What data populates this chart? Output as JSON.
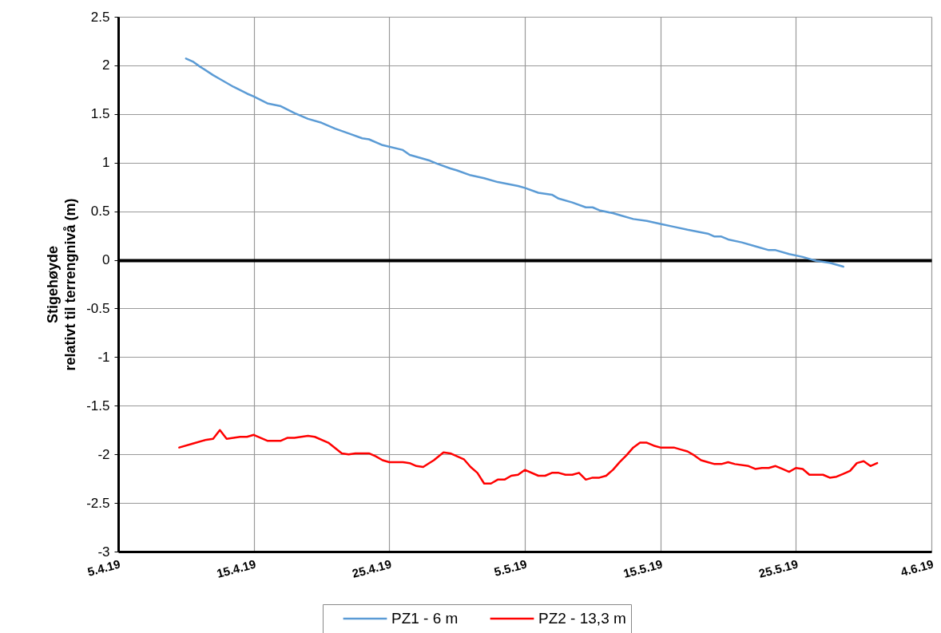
{
  "chart_data": {
    "type": "line",
    "ylabel": "Stigehøyde\nrelativt til terrengnivå (m)",
    "xlim": [
      "--04-05",
      "--06-04"
    ],
    "xticks": [
      {
        "value": "--04-05",
        "label": "5.4.19"
      },
      {
        "value": "--04-15",
        "label": "15.4.19"
      },
      {
        "value": "--04-25",
        "label": "25.4.19"
      },
      {
        "value": "--05-05",
        "label": "5.5.19"
      },
      {
        "value": "--05-15",
        "label": "15.5.19"
      },
      {
        "value": "--05-25",
        "label": "25.5.19"
      },
      {
        "value": "--06-04",
        "label": "4.6.19"
      }
    ],
    "ylim": [
      -3,
      2.5
    ],
    "yticks": [
      -3,
      -2.5,
      -2,
      -1.5,
      -1,
      -0.5,
      0,
      0.5,
      1,
      1.5,
      2,
      2.5
    ],
    "grid": true,
    "legend": "bottom",
    "series": [
      {
        "name": "PZ1 - 6 m",
        "color": "#5b9bd5",
        "x": [
          "--04-10",
          "--04-10T12:00",
          "--04-11",
          "--04-12",
          "--04-12T12:00",
          "--04-13T12:00",
          "--04-14T12:00",
          "--04-15",
          "--04-16",
          "--04-17",
          "--04-18",
          "--04-19",
          "--04-20",
          "--04-21",
          "--04-22",
          "--04-23",
          "--04-23T12:00",
          "--04-24T12:00",
          "--04-26",
          "--04-26T12:00",
          "--04-28",
          "--04-28T12:00",
          "--04-29T12:00",
          "--04-30",
          "--05-01",
          "--05-02",
          "--05-03",
          "--05-04T12:00",
          "--05-05",
          "--05-06",
          "--05-07",
          "--05-07T12:00",
          "--05-08T12:00",
          "--05-09T12:00",
          "--05-10",
          "--05-10T12:00",
          "--05-11T12:00",
          "--05-12",
          "--05-13",
          "--05-14",
          "--05-15",
          "--05-16",
          "--05-17",
          "--05-18T12:00",
          "--05-19",
          "--05-19T12:00",
          "--05-20",
          "--05-21",
          "--05-22",
          "--05-23",
          "--05-23T12:00",
          "--05-24T12:00",
          "--05-25T12:00",
          "--05-26T12:00",
          "--05-27T12:00",
          "--05-28T12:00"
        ],
        "values": [
          2.07,
          2.04,
          1.99,
          1.9,
          1.86,
          1.78,
          1.71,
          1.68,
          1.61,
          1.58,
          1.51,
          1.45,
          1.41,
          1.35,
          1.3,
          1.25,
          1.24,
          1.18,
          1.13,
          1.08,
          1.02,
          0.99,
          0.94,
          0.92,
          0.87,
          0.84,
          0.8,
          0.76,
          0.74,
          0.69,
          0.67,
          0.63,
          0.59,
          0.54,
          0.54,
          0.51,
          0.48,
          0.46,
          0.42,
          0.4,
          0.37,
          0.34,
          0.31,
          0.27,
          0.24,
          0.24,
          0.21,
          0.18,
          0.14,
          0.1,
          0.1,
          0.06,
          0.03,
          -0.01,
          -0.03,
          -0.07
        ]
      },
      {
        "name": "PZ2 - 13,3 m",
        "color": "#ff0000",
        "x": [
          "--04-09T12:00",
          "--04-10T12:00",
          "--04-11T12:00",
          "--04-12",
          "--04-12T12:00",
          "--04-13",
          "--04-14",
          "--04-14T12:00",
          "--04-15",
          "--04-16",
          "--04-17",
          "--04-17T12:00",
          "--04-18",
          "--04-19",
          "--04-19T12:00",
          "--04-20T12:00",
          "--04-21T12:00",
          "--04-22",
          "--04-22T12:00",
          "--04-23T12:00",
          "--04-24",
          "--04-24T12:00",
          "--04-25",
          "--04-26",
          "--04-26T12:00",
          "--04-27",
          "--04-27T12:00",
          "--04-28T07:00",
          "--04-29",
          "--04-29T12:00",
          "--04-30T12:00",
          "--05-01",
          "--05-01T12:00",
          "--05-02",
          "--05-02T12:00",
          "--05-03",
          "--05-03T12:00",
          "--05-04",
          "--05-04T12:00",
          "--05-05",
          "--05-06",
          "--05-06T12:00",
          "--05-07",
          "--05-07T12:00",
          "--05-08",
          "--05-08T12:00",
          "--05-09",
          "--05-09T12:00",
          "--05-10",
          "--05-10T12:00",
          "--05-11",
          "--05-11T12:00",
          "--05-12",
          "--05-12T12:00",
          "--05-13",
          "--05-13T12:00",
          "--05-14",
          "--05-14T12:00",
          "--05-15",
          "--05-16",
          "--05-16T12:00",
          "--05-17",
          "--05-17T12:00",
          "--05-18",
          "--05-18T12:00",
          "--05-19",
          "--05-19T12:00",
          "--05-20",
          "--05-20T12:00",
          "--05-21T12:00",
          "--05-22",
          "--05-22T12:00",
          "--05-23",
          "--05-23T12:00",
          "--05-24",
          "--05-24T12:00",
          "--05-25",
          "--05-25T12:00",
          "--05-26",
          "--05-26T12:00",
          "--05-27",
          "--05-27T12:00",
          "--05-28",
          "--05-28T12:00",
          "--05-29",
          "--05-29T12:00",
          "--05-30",
          "--05-30T12:00",
          "--05-31"
        ],
        "values": [
          -1.93,
          -1.89,
          -1.85,
          -1.84,
          -1.75,
          -1.84,
          -1.82,
          -1.82,
          -1.8,
          -1.86,
          -1.86,
          -1.83,
          -1.83,
          -1.81,
          -1.82,
          -1.88,
          -1.99,
          -2,
          -1.99,
          -1.99,
          -2.02,
          -2.06,
          -2.08,
          -2.08,
          -2.09,
          -2.12,
          -2.13,
          -2.06,
          -1.98,
          -1.99,
          -2.05,
          -2.13,
          -2.19,
          -2.3,
          -2.3,
          -2.26,
          -2.26,
          -2.22,
          -2.21,
          -2.16,
          -2.22,
          -2.22,
          -2.19,
          -2.19,
          -2.21,
          -2.21,
          -2.19,
          -2.26,
          -2.24,
          -2.24,
          -2.22,
          -2.16,
          -2.08,
          -2.01,
          -1.93,
          -1.88,
          -1.88,
          -1.91,
          -1.93,
          -1.93,
          -1.95,
          -1.97,
          -2.01,
          -2.06,
          -2.08,
          -2.1,
          -2.1,
          -2.08,
          -2.1,
          -2.12,
          -2.15,
          -2.14,
          -2.14,
          -2.12,
          -2.15,
          -2.18,
          -2.14,
          -2.15,
          -2.21,
          -2.21,
          -2.21,
          -2.24,
          -2.23,
          -2.2,
          -2.17,
          -2.09,
          -2.07,
          -2.12,
          -2.09
        ]
      }
    ]
  }
}
